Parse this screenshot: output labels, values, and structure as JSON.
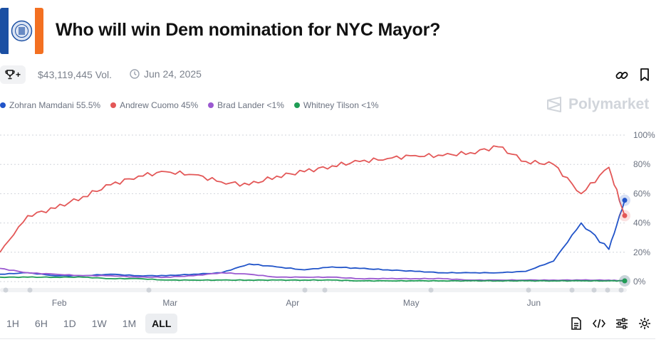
{
  "header": {
    "title": "Who will win Dem nomination for NYC Mayor?",
    "flag_colors": [
      "#1b4fa3",
      "#ffffff",
      "#f37021"
    ]
  },
  "meta": {
    "trophy_icon": "trophy-icon",
    "trophy_plus": "+",
    "volume": "$43,119,445 Vol.",
    "date": "Jun 24, 2025"
  },
  "legend": [
    {
      "label": "Zohran Mamdani 55.5%",
      "color": "#2154c9"
    },
    {
      "label": "Andrew Cuomo 45%",
      "color": "#e35757"
    },
    {
      "label": "Brad Lander <1%",
      "color": "#9b59d0"
    },
    {
      "label": "Whitney Tilson <1%",
      "color": "#1f9d55"
    }
  ],
  "watermark": "Polymarket",
  "chart_data": {
    "type": "line",
    "x": [
      "Jan 17",
      "Jan 24",
      "Jan 31",
      "Feb 7",
      "Feb 14",
      "Feb 21",
      "Feb 28",
      "Mar 7",
      "Mar 14",
      "Mar 21",
      "Mar 28",
      "Apr 4",
      "Apr 11",
      "Apr 18",
      "Apr 25",
      "May 2",
      "May 9",
      "May 16",
      "May 23",
      "May 30",
      "Jun 6",
      "Jun 13",
      "Jun 20",
      "Jun 24"
    ],
    "x_ticks": [
      "Feb",
      "Mar",
      "Apr",
      "May",
      "Jun"
    ],
    "x_tick_positions": [
      "Feb 1",
      "Mar 1",
      "Apr 1",
      "May 1",
      "Jun 1"
    ],
    "y_ticks": [
      "0%",
      "20%",
      "40%",
      "60%",
      "80%",
      "100%"
    ],
    "ylim": [
      0,
      100
    ],
    "grid": true,
    "series": [
      {
        "name": "Zohran Mamdani",
        "color": "#2154c9",
        "values": [
          5,
          6,
          4,
          4,
          5,
          4,
          4,
          5,
          6,
          12,
          10,
          8,
          10,
          9,
          8,
          7,
          6,
          6,
          6,
          7,
          14,
          40,
          22,
          55.5
        ]
      },
      {
        "name": "Andrew Cuomo",
        "color": "#e35757",
        "values": [
          20,
          45,
          50,
          58,
          66,
          72,
          75,
          73,
          68,
          66,
          72,
          75,
          79,
          82,
          84,
          86,
          86,
          88,
          92,
          82,
          80,
          60,
          78,
          45
        ]
      },
      {
        "name": "Brad Lander",
        "color": "#9b59d0",
        "values": [
          9,
          6,
          5,
          4,
          4,
          3,
          3,
          4,
          6,
          5,
          3,
          3,
          3,
          2,
          2,
          2,
          2,
          1,
          1,
          1,
          1,
          1,
          1,
          0.5
        ]
      },
      {
        "name": "Whitney Tilson",
        "color": "#1f9d55",
        "values": [
          3,
          3,
          3,
          3,
          2,
          2,
          1,
          1,
          1,
          1,
          1,
          1,
          1,
          0.5,
          0.5,
          0.5,
          0.5,
          0.5,
          0.5,
          0.5,
          0.5,
          0.5,
          0.5,
          0.5
        ]
      }
    ]
  },
  "ranges": [
    "1H",
    "6H",
    "1D",
    "1W",
    "1M",
    "ALL"
  ],
  "active_range": "ALL",
  "tools": [
    "document-icon",
    "code-icon",
    "sliders-icon",
    "settings-icon"
  ]
}
